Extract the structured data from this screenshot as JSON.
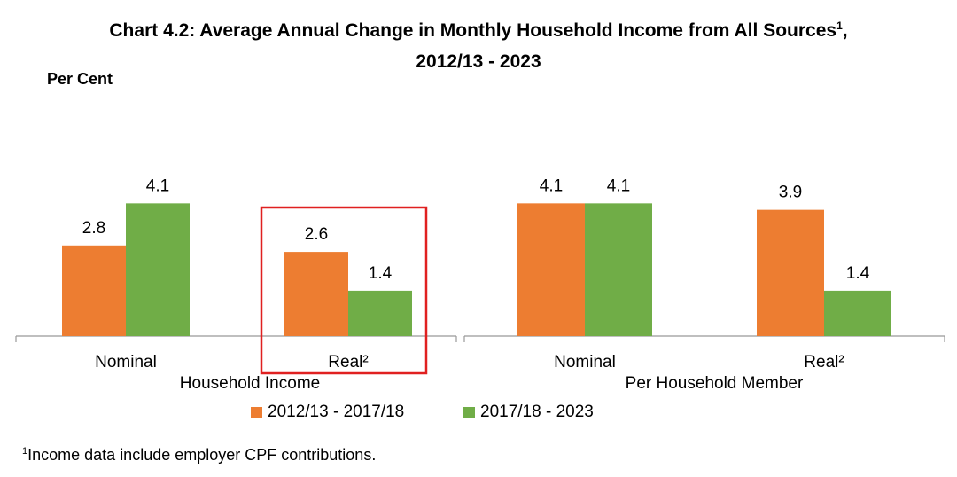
{
  "title_line1": "Chart 4.2: Average Annual Change in Monthly Household Income from All Sources",
  "title_sup": "1",
  "title_line1_tail": ",",
  "title_line2": "2012/13 - 2023",
  "unit_label": "Per Cent",
  "footnote_sup": "1",
  "footnote_text": "Income data include employer CPF contributions.",
  "colors": {
    "series1": "#ED7D31",
    "series2": "#70AD47",
    "highlight": "#E02020",
    "axis": "#999999"
  },
  "chart_data": {
    "type": "bar",
    "ylim": [
      0,
      5
    ],
    "grid": false,
    "legend_position": "bottom",
    "series": [
      {
        "name": "2012/13 - 2017/18"
      },
      {
        "name": "2017/18 - 2023"
      }
    ],
    "groups": [
      {
        "label": "Household Income",
        "categories": [
          {
            "label": "Nominal",
            "values": [
              2.8,
              4.1
            ]
          },
          {
            "label": "Real²",
            "values": [
              2.6,
              1.4
            ],
            "highlighted": true
          }
        ]
      },
      {
        "label": "Per Household Member",
        "categories": [
          {
            "label": "Nominal",
            "values": [
              4.1,
              4.1
            ]
          },
          {
            "label": "Real²",
            "values": [
              3.9,
              1.4
            ]
          }
        ]
      }
    ]
  }
}
